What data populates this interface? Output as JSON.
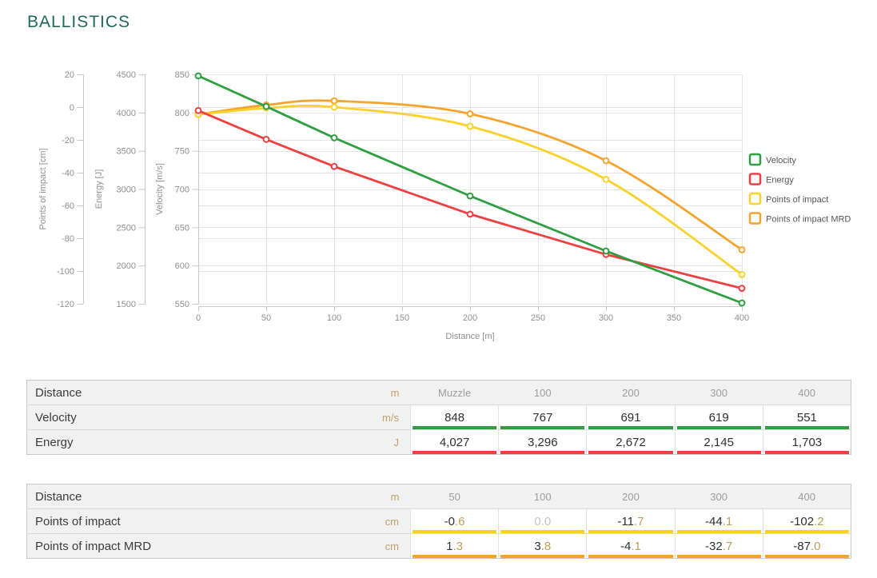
{
  "page_title": "BALLISTICS",
  "colors": {
    "title": "#20695a",
    "velocity": "#2f9e41",
    "energy": "#ee3f42",
    "poi": "#fad02b",
    "poi_mrd": "#f4a32c",
    "grid": "#e5e5e5",
    "axis_line": "#c9c9c9",
    "tick_text": "#8f8f8f",
    "legend_text": "#565656"
  },
  "chart_data": {
    "type": "line",
    "x": [
      0,
      50,
      100,
      200,
      300,
      400
    ],
    "x_ticks": [
      0,
      50,
      100,
      150,
      200,
      250,
      300,
      350,
      400
    ],
    "xlabel": "Distance [m]",
    "grid": true,
    "axes": [
      {
        "id": "poi",
        "label": "Points of impact [cm]",
        "min": -120,
        "max": 20,
        "ticks": [
          20,
          0,
          -20,
          -40,
          -60,
          -80,
          -100,
          -120
        ]
      },
      {
        "id": "energy",
        "label": "Energy [J]",
        "min": 1500,
        "max": 4500,
        "ticks": [
          4500,
          4000,
          3500,
          3000,
          2500,
          2000,
          1500
        ]
      },
      {
        "id": "velocity",
        "label": "Velocity [m/s]",
        "min": 550,
        "max": 850,
        "ticks": [
          850,
          800,
          750,
          700,
          650,
          600,
          550
        ]
      }
    ],
    "series": [
      {
        "name": "Points of impact MRD",
        "axis": "poi",
        "color": "poi_mrd",
        "smooth": true,
        "values": [
          -4.5,
          1.3,
          3.8,
          -4.1,
          -32.7,
          -87.0
        ]
      },
      {
        "name": "Points of impact",
        "axis": "poi",
        "color": "poi",
        "smooth": true,
        "values": [
          -4.5,
          -0.6,
          0.0,
          -11.7,
          -44.1,
          -102.2
        ]
      },
      {
        "name": "Energy",
        "axis": "energy",
        "color": "energy",
        "smooth": false,
        "values": [
          4027,
          3650,
          3296,
          2672,
          2145,
          1703
        ]
      },
      {
        "name": "Velocity",
        "axis": "velocity",
        "color": "velocity",
        "smooth": false,
        "values": [
          848,
          808,
          767,
          691,
          619,
          551
        ]
      }
    ],
    "legend": {
      "position": "right",
      "items": [
        {
          "label": "Velocity",
          "color": "velocity"
        },
        {
          "label": "Energy",
          "color": "energy"
        },
        {
          "label": "Points of impact",
          "color": "poi"
        },
        {
          "label": "Points of impact MRD",
          "color": "poi_mrd"
        }
      ]
    }
  },
  "tables": [
    {
      "name": "velocity-energy-table",
      "header": {
        "label": "Distance",
        "unit": "m",
        "columns": [
          "Muzzle",
          "100",
          "200",
          "300",
          "400"
        ]
      },
      "rows": [
        {
          "label": "Velocity",
          "unit": "m/s",
          "underline": "velocity",
          "values": [
            {
              "int": "848"
            },
            {
              "int": "767"
            },
            {
              "int": "691"
            },
            {
              "int": "619"
            },
            {
              "int": "551"
            }
          ]
        },
        {
          "label": "Energy",
          "unit": "J",
          "underline": "energy",
          "values": [
            {
              "int": "4,027"
            },
            {
              "int": "3,296"
            },
            {
              "int": "2,672"
            },
            {
              "int": "2,145"
            },
            {
              "int": "1,703"
            }
          ]
        }
      ]
    },
    {
      "name": "points-of-impact-table",
      "header": {
        "label": "Distance",
        "unit": "m",
        "columns": [
          "50",
          "100",
          "200",
          "300",
          "400"
        ]
      },
      "rows": [
        {
          "label": "Points of impact",
          "unit": "cm",
          "underline": "poi",
          "values": [
            {
              "int": "-0",
              "dec": ".6"
            },
            {
              "int": "0",
              "dec": ".0",
              "muted": true
            },
            {
              "int": "-11",
              "dec": ".7"
            },
            {
              "int": "-44",
              "dec": ".1"
            },
            {
              "int": "-102",
              "dec": ".2"
            }
          ]
        },
        {
          "label": "Points of impact MRD",
          "unit": "cm",
          "underline": "poi_mrd",
          "values": [
            {
              "int": "1",
              "dec": ".3"
            },
            {
              "int": "3",
              "dec": ".8"
            },
            {
              "int": "-4",
              "dec": ".1"
            },
            {
              "int": "-32",
              "dec": ".7"
            },
            {
              "int": "-87",
              "dec": ".0"
            }
          ]
        }
      ]
    }
  ]
}
